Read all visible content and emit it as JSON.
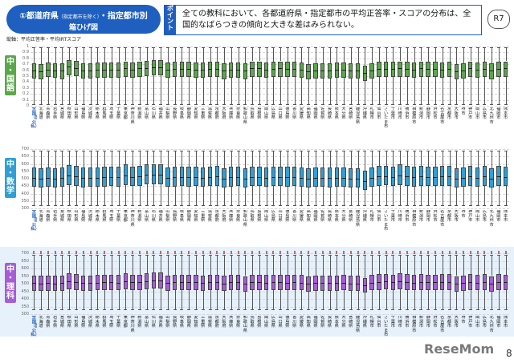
{
  "header": {
    "title_main": "①都道府県",
    "title_note": "（指定都市を除く）",
    "title_tail": "・指定都市別",
    "subtitle": "箱ひげ図",
    "point_tag_chars": [
      "ポ",
      "イ",
      "ン",
      "ト"
    ],
    "point_text": "全ての教科において、各都道府県・指定都市の平均正答率・スコアの分布は、全国的なばらつきの傾向と大きな差はみられない。",
    "badge": "R7",
    "legend": "縦軸：平均正答率・平均IRTスコア"
  },
  "colors": {
    "kokugo": "#5aa84a",
    "sugaku": "#2f9fd6",
    "rika": "#a85cd6",
    "title": "#1f5fbf",
    "band_rika": "#e6f1fb"
  },
  "chart_data": [
    {
      "type": "box",
      "subject_chars": [
        "中",
        "・",
        "国",
        "語"
      ],
      "y_ticks": [
        "1",
        "0.9",
        "0.8",
        "0.7",
        "0.6",
        "0.5",
        "0.4",
        "0.3",
        "0.2",
        "0.1",
        "0"
      ],
      "ylim": [
        0,
        1
      ],
      "categories": [
        "全国（国公私）",
        "北海道",
        "青森県",
        "岩手県",
        "宮城県",
        "秋田県",
        "山形県",
        "福島県",
        "茨城県",
        "栃木県",
        "群馬県",
        "埼玉県",
        "千葉県",
        "東京都",
        "神奈川県",
        "新潟県",
        "富山県",
        "石川県",
        "福井県",
        "山梨県",
        "長野県",
        "岐阜県",
        "静岡県",
        "愛知県",
        "三重県",
        "滋賀県",
        "京都府",
        "大阪府",
        "兵庫県",
        "奈良県",
        "和歌山県",
        "鳥取県",
        "島根県",
        "岡山県",
        "広島県",
        "山口県",
        "徳島県",
        "香川県",
        "愛媛県",
        "高知県",
        "福岡県",
        "佐賀県",
        "長崎県",
        "熊本県",
        "大分県",
        "宮崎県",
        "鹿児島県",
        "沖縄県",
        "札幌市",
        "仙台市",
        "さいたま市",
        "千葉市",
        "川崎市",
        "横浜市",
        "相模原市",
        "新潟市",
        "静岡市",
        "浜松市",
        "名古屋市",
        "京都市",
        "大阪市",
        "堺市",
        "神戸市",
        "岡山市",
        "広島市",
        "北九州市",
        "福岡市",
        "熊本市"
      ],
      "series": [
        {
          "q1": [
            0.46,
            0.44,
            0.48,
            0.47,
            0.45,
            0.52,
            0.5,
            0.46,
            0.46,
            0.47,
            0.47,
            0.47,
            0.47,
            0.49,
            0.47,
            0.49,
            0.5,
            0.51,
            0.51,
            0.47,
            0.48,
            0.48,
            0.48,
            0.47,
            0.47,
            0.48,
            0.48,
            0.45,
            0.47,
            0.47,
            0.45,
            0.49,
            0.49,
            0.47,
            0.48,
            0.49,
            0.48,
            0.48,
            0.47,
            0.44,
            0.46,
            0.46,
            0.46,
            0.47,
            0.47,
            0.46,
            0.46,
            0.42,
            0.46,
            0.48,
            0.48,
            0.48,
            0.49,
            0.48,
            0.47,
            0.49,
            0.48,
            0.48,
            0.47,
            0.48,
            0.44,
            0.46,
            0.49,
            0.47,
            0.48,
            0.45,
            0.48,
            0.49
          ],
          "med": [
            0.6,
            0.58,
            0.61,
            0.6,
            0.59,
            0.66,
            0.64,
            0.6,
            0.6,
            0.61,
            0.61,
            0.61,
            0.61,
            0.63,
            0.61,
            0.63,
            0.64,
            0.65,
            0.65,
            0.61,
            0.62,
            0.62,
            0.62,
            0.61,
            0.61,
            0.62,
            0.62,
            0.59,
            0.61,
            0.61,
            0.59,
            0.63,
            0.63,
            0.61,
            0.62,
            0.63,
            0.62,
            0.62,
            0.61,
            0.58,
            0.6,
            0.6,
            0.6,
            0.61,
            0.61,
            0.6,
            0.6,
            0.56,
            0.6,
            0.62,
            0.62,
            0.62,
            0.63,
            0.62,
            0.61,
            0.63,
            0.62,
            0.62,
            0.61,
            0.62,
            0.58,
            0.6,
            0.63,
            0.61,
            0.62,
            0.59,
            0.62,
            0.63
          ],
          "q3": [
            0.72,
            0.7,
            0.73,
            0.72,
            0.71,
            0.77,
            0.76,
            0.72,
            0.72,
            0.73,
            0.73,
            0.73,
            0.73,
            0.75,
            0.73,
            0.75,
            0.76,
            0.77,
            0.77,
            0.73,
            0.74,
            0.74,
            0.74,
            0.73,
            0.73,
            0.74,
            0.74,
            0.71,
            0.73,
            0.73,
            0.71,
            0.75,
            0.75,
            0.73,
            0.74,
            0.75,
            0.74,
            0.74,
            0.73,
            0.7,
            0.72,
            0.72,
            0.72,
            0.73,
            0.73,
            0.72,
            0.72,
            0.68,
            0.72,
            0.74,
            0.74,
            0.74,
            0.75,
            0.74,
            0.73,
            0.75,
            0.74,
            0.74,
            0.73,
            0.74,
            0.7,
            0.72,
            0.75,
            0.73,
            0.74,
            0.71,
            0.74,
            0.75
          ],
          "lo": 0.03,
          "hi": 0.98
        }
      ]
    },
    {
      "type": "box",
      "subject_chars": [
        "中",
        "・",
        "数",
        "学"
      ],
      "y_ticks": [
        "700",
        "650",
        "600",
        "550",
        "500",
        "450",
        "400",
        "350",
        "300"
      ],
      "ylim": [
        300,
        700
      ],
      "categories": [
        "全国（国公私）",
        "北海道",
        "青森県",
        "岩手県",
        "宮城県",
        "秋田県",
        "山形県",
        "福島県",
        "茨城県",
        "栃木県",
        "群馬県",
        "埼玉県",
        "千葉県",
        "東京都",
        "神奈川県",
        "新潟県",
        "富山県",
        "石川県",
        "福井県",
        "山梨県",
        "長野県",
        "岐阜県",
        "静岡県",
        "愛知県",
        "三重県",
        "滋賀県",
        "京都府",
        "大阪府",
        "兵庫県",
        "奈良県",
        "和歌山県",
        "鳥取県",
        "島根県",
        "岡山県",
        "広島県",
        "山口県",
        "徳島県",
        "香川県",
        "愛媛県",
        "高知県",
        "福岡県",
        "佐賀県",
        "長崎県",
        "熊本県",
        "大分県",
        "宮崎県",
        "鹿児島県",
        "沖縄県",
        "札幌市",
        "仙台市",
        "さいたま市",
        "千葉市",
        "川崎市",
        "横浜市",
        "相模原市",
        "新潟市",
        "静岡市",
        "浜松市",
        "名古屋市",
        "京都市",
        "大阪市",
        "堺市",
        "神戸市",
        "岡山市",
        "広島市",
        "北九州市",
        "福岡市",
        "熊本市"
      ],
      "series": [
        {
          "q1": [
            445,
            440,
            445,
            440,
            445,
            455,
            452,
            443,
            445,
            447,
            448,
            450,
            448,
            458,
            450,
            452,
            460,
            462,
            462,
            445,
            448,
            450,
            448,
            450,
            445,
            450,
            452,
            442,
            448,
            450,
            440,
            450,
            450,
            446,
            450,
            450,
            448,
            450,
            446,
            438,
            444,
            444,
            443,
            444,
            446,
            442,
            442,
            425,
            446,
            452,
            455,
            450,
            458,
            452,
            448,
            452,
            450,
            450,
            452,
            452,
            440,
            444,
            452,
            446,
            452,
            440,
            452,
            450
          ],
          "med": [
            505,
            500,
            505,
            500,
            505,
            520,
            515,
            503,
            505,
            508,
            510,
            512,
            510,
            522,
            512,
            515,
            525,
            528,
            528,
            505,
            510,
            512,
            510,
            512,
            505,
            512,
            515,
            502,
            510,
            512,
            500,
            512,
            512,
            507,
            512,
            512,
            510,
            512,
            507,
            498,
            504,
            504,
            503,
            504,
            507,
            502,
            502,
            482,
            507,
            515,
            518,
            512,
            522,
            515,
            510,
            515,
            512,
            512,
            515,
            515,
            500,
            504,
            515,
            507,
            515,
            500,
            515,
            512
          ],
          "q3": [
            575,
            570,
            575,
            570,
            575,
            590,
            588,
            573,
            575,
            578,
            580,
            582,
            580,
            595,
            582,
            585,
            598,
            600,
            600,
            575,
            580,
            582,
            580,
            582,
            575,
            582,
            585,
            572,
            580,
            582,
            570,
            582,
            582,
            577,
            582,
            582,
            580,
            582,
            577,
            568,
            574,
            574,
            573,
            574,
            577,
            572,
            572,
            552,
            577,
            585,
            588,
            582,
            595,
            585,
            580,
            585,
            582,
            582,
            585,
            585,
            570,
            574,
            585,
            577,
            585,
            570,
            585,
            582
          ],
          "lo": 320,
          "hi": 690
        }
      ]
    },
    {
      "type": "box",
      "subject_chars": [
        "中",
        "・",
        "理",
        "科"
      ],
      "y_ticks": [
        "700",
        "650",
        "600",
        "550",
        "500",
        "450",
        "400",
        "350",
        "300"
      ],
      "ylim": [
        300,
        700
      ],
      "categories": [
        "全国（国公私）",
        "北海道",
        "青森県",
        "岩手県",
        "宮城県",
        "秋田県",
        "山形県",
        "福島県",
        "茨城県",
        "栃木県",
        "群馬県",
        "埼玉県",
        "千葉県",
        "東京都",
        "神奈川県",
        "新潟県",
        "富山県",
        "石川県",
        "福井県",
        "山梨県",
        "長野県",
        "岐阜県",
        "静岡県",
        "愛知県",
        "三重県",
        "滋賀県",
        "京都府",
        "大阪府",
        "兵庫県",
        "奈良県",
        "和歌山県",
        "鳥取県",
        "島根県",
        "岡山県",
        "広島県",
        "山口県",
        "徳島県",
        "香川県",
        "愛媛県",
        "高知県",
        "福岡県",
        "佐賀県",
        "長崎県",
        "熊本県",
        "大分県",
        "宮崎県",
        "鹿児島県",
        "沖縄県",
        "札幌市",
        "仙台市",
        "さいたま市",
        "千葉市",
        "川崎市",
        "横浜市",
        "相模原市",
        "新潟市",
        "静岡市",
        "浜松市",
        "名古屋市",
        "京都市",
        "大阪市",
        "堺市",
        "神戸市",
        "岡山市",
        "広島市",
        "北九州市",
        "福岡市",
        "熊本市"
      ],
      "series": [
        {
          "q1": [
            455,
            452,
            455,
            452,
            455,
            462,
            460,
            453,
            455,
            457,
            458,
            458,
            456,
            462,
            458,
            460,
            465,
            466,
            466,
            455,
            458,
            458,
            458,
            458,
            455,
            458,
            460,
            452,
            458,
            458,
            450,
            458,
            458,
            456,
            458,
            458,
            457,
            458,
            456,
            448,
            454,
            454,
            453,
            454,
            456,
            452,
            452,
            440,
            456,
            460,
            462,
            458,
            465,
            460,
            457,
            460,
            458,
            458,
            460,
            460,
            450,
            454,
            460,
            456,
            460,
            450,
            460,
            458
          ],
          "med": [
            505,
            502,
            505,
            502,
            505,
            515,
            512,
            503,
            505,
            507,
            508,
            508,
            506,
            515,
            508,
            510,
            518,
            520,
            520,
            505,
            508,
            508,
            508,
            508,
            505,
            508,
            510,
            502,
            508,
            508,
            500,
            508,
            508,
            506,
            508,
            508,
            507,
            508,
            506,
            498,
            504,
            504,
            503,
            504,
            506,
            502,
            502,
            488,
            506,
            512,
            514,
            508,
            518,
            512,
            507,
            512,
            508,
            508,
            512,
            512,
            500,
            504,
            512,
            506,
            512,
            500,
            512,
            508
          ],
          "q3": [
            555,
            552,
            555,
            552,
            555,
            568,
            565,
            553,
            555,
            557,
            558,
            558,
            556,
            568,
            558,
            560,
            570,
            572,
            572,
            555,
            558,
            558,
            558,
            558,
            555,
            558,
            560,
            552,
            558,
            558,
            550,
            558,
            558,
            556,
            558,
            558,
            557,
            558,
            556,
            548,
            554,
            554,
            553,
            554,
            556,
            552,
            552,
            535,
            556,
            562,
            565,
            558,
            570,
            562,
            557,
            562,
            558,
            558,
            562,
            562,
            550,
            554,
            562,
            556,
            562,
            550,
            562,
            558
          ],
          "lo": 330,
          "hi": 690
        }
      ]
    }
  ],
  "footer": {
    "watermark": "ReseMom",
    "page": "8"
  }
}
